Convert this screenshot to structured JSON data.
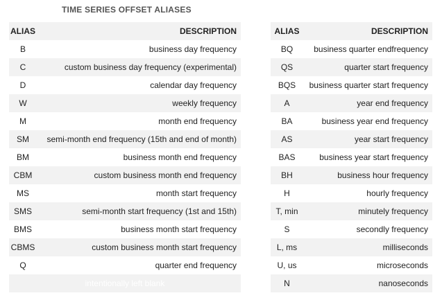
{
  "title": "TIME SERIES OFFSET ALIASES",
  "left_table": {
    "headers": {
      "alias": "ALIAS",
      "description": "DESCRIPTION"
    },
    "rows": [
      {
        "alias": "B",
        "description": "business day frequency"
      },
      {
        "alias": "C",
        "description": "custom business day frequency (experimental)"
      },
      {
        "alias": "D",
        "description": "calendar day frequency"
      },
      {
        "alias": "W",
        "description": "weekly frequency"
      },
      {
        "alias": "M",
        "description": "month end frequency"
      },
      {
        "alias": "SM",
        "description": "semi-month end frequency (15th and end of month)"
      },
      {
        "alias": "BM",
        "description": "business month end frequency"
      },
      {
        "alias": "CBM",
        "description": "custom business month end frequency"
      },
      {
        "alias": "MS",
        "description": "month start frequency"
      },
      {
        "alias": "SMS",
        "description": "semi-month start frequency (1st and 15th)"
      },
      {
        "alias": "BMS",
        "description": "business month start frequency"
      },
      {
        "alias": "CBMS",
        "description": "custom business month start frequency"
      },
      {
        "alias": "Q",
        "description": "quarter end frequency"
      }
    ],
    "blank_row_text": "intentionally left blank"
  },
  "right_table": {
    "headers": {
      "alias": "ALIAS",
      "description": "DESCRIPTION"
    },
    "rows": [
      {
        "alias": "BQ",
        "description": "business quarter endfrequency"
      },
      {
        "alias": "QS",
        "description": "quarter start frequency"
      },
      {
        "alias": "BQS",
        "description": "business quarter start frequency"
      },
      {
        "alias": "A",
        "description": "year end frequency"
      },
      {
        "alias": "BA",
        "description": "business year end frequency"
      },
      {
        "alias": "AS",
        "description": "year start frequency"
      },
      {
        "alias": "BAS",
        "description": "business year start frequency"
      },
      {
        "alias": "BH",
        "description": "business hour frequency"
      },
      {
        "alias": "H",
        "description": "hourly frequency"
      },
      {
        "alias": "T, min",
        "description": "minutely frequency"
      },
      {
        "alias": "S",
        "description": "secondly frequency"
      },
      {
        "alias": "L, ms",
        "description": "milliseconds"
      },
      {
        "alias": "U, us",
        "description": "microseconds"
      },
      {
        "alias": "N",
        "description": "nanoseconds"
      }
    ]
  }
}
